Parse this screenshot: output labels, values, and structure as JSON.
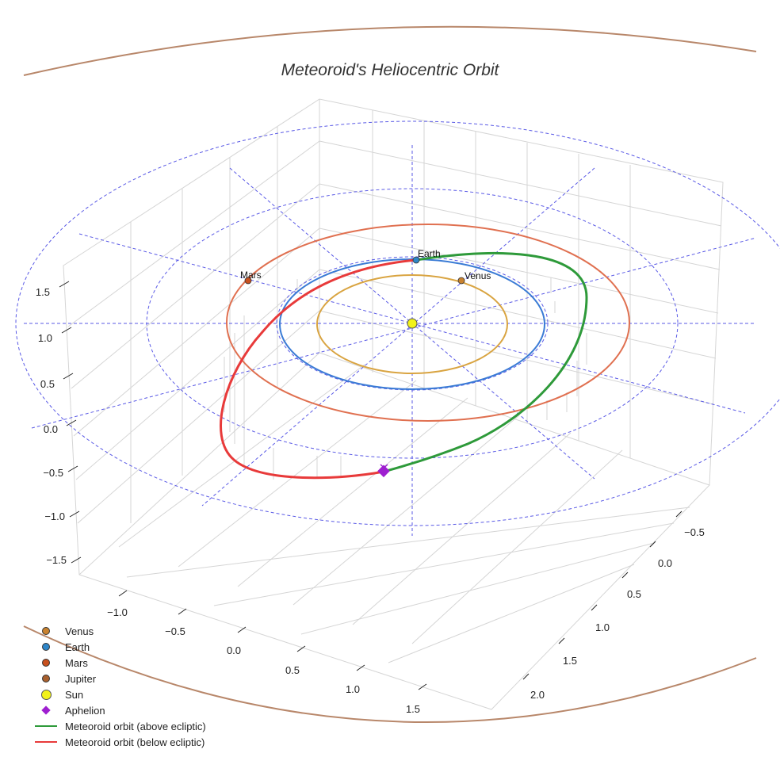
{
  "chart_data": {
    "type": "3d-line",
    "title": "Meteoroid's Heliocentric Orbit",
    "axes": {
      "x": {
        "ticks": [
          "−1.0",
          "−0.5",
          "0.0",
          "0.5",
          "1.0",
          "1.5"
        ],
        "range": [
          -1.25,
          1.75
        ]
      },
      "y": {
        "ticks": [
          "−0.5",
          "0.0",
          "0.5",
          "1.0",
          "1.5",
          "2.0"
        ],
        "range": [
          -0.75,
          2.25
        ]
      },
      "z": {
        "ticks": [
          "−1.5",
          "−1.0",
          "−0.5",
          "0.0",
          "0.5",
          "1.0",
          "1.5"
        ],
        "range": [
          -1.75,
          1.75
        ]
      }
    },
    "orbits": [
      {
        "name": "Venus orbit",
        "radius_au": 0.72,
        "color": "#d9a441"
      },
      {
        "name": "Earth orbit",
        "radius_au": 1.0,
        "color": "#3a7bd5"
      },
      {
        "name": "Mars orbit",
        "radius_au": 1.52,
        "color": "#e07050"
      },
      {
        "name": "Jupiter orbit",
        "radius_au": 5.2,
        "color": "#b8876a"
      }
    ],
    "reference_circles_au": [
      1.0,
      2.0,
      3.0
    ],
    "bodies": [
      {
        "name": "Venus",
        "label": "Venus"
      },
      {
        "name": "Earth",
        "label": "Earth"
      },
      {
        "name": "Mars",
        "label": "Mars"
      },
      {
        "name": "Sun",
        "label": ""
      }
    ],
    "meteoroid": {
      "perihelion_au": 0.97,
      "aphelion_au": 1.55,
      "segments": [
        "above ecliptic",
        "below ecliptic"
      ]
    },
    "legend": [
      {
        "label": "Venus",
        "symbol": "dot",
        "color": "#c9822f"
      },
      {
        "label": "Earth",
        "symbol": "dot",
        "color": "#2e86c9"
      },
      {
        "label": "Mars",
        "symbol": "dot",
        "color": "#c8501e"
      },
      {
        "label": "Jupiter",
        "symbol": "dot",
        "color": "#a8602e"
      },
      {
        "label": "Sun",
        "symbol": "sun",
        "color": "#f2f21a"
      },
      {
        "label": "Aphelion",
        "symbol": "diamond",
        "color": "#9e1fd0"
      },
      {
        "label": "Meteoroid orbit (above ecliptic)",
        "symbol": "line",
        "color": "#2e9a3a"
      },
      {
        "label": "Meteoroid orbit (below ecliptic)",
        "symbol": "line",
        "color": "#e83a3a"
      }
    ]
  }
}
